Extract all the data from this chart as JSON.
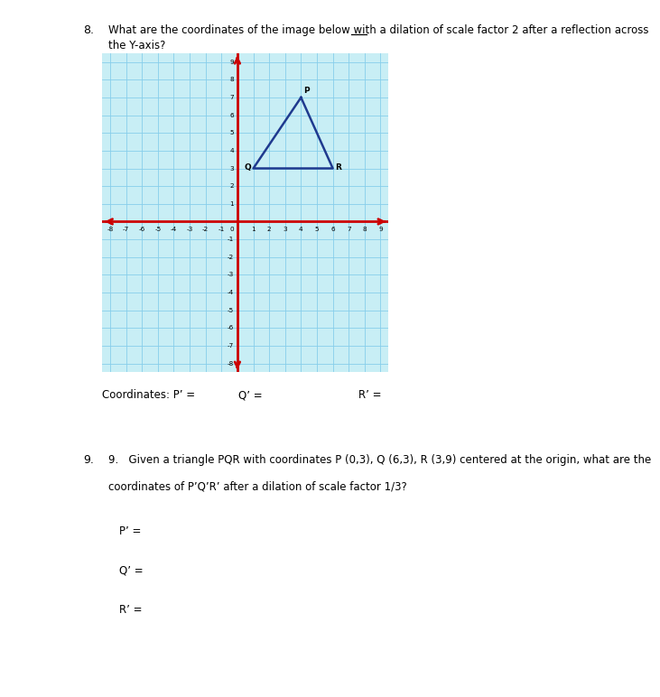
{
  "triangle_P": [
    4,
    7
  ],
  "triangle_Q": [
    1,
    3
  ],
  "triangle_R": [
    6,
    3
  ],
  "triangle_color": "#1F3A8F",
  "triangle_linewidth": 1.8,
  "grid_bg": "#C8EEF5",
  "grid_line_color": "#87CEEB",
  "axis_color": "#CC0000",
  "x_min": -8,
  "x_max": 9,
  "y_min": -8,
  "y_max": 9,
  "label_P": "P",
  "label_Q": "Q",
  "label_R": "R",
  "coords_label8": "Coordinates: P’ =",
  "q_label8": "Q’ =",
  "r_label8": "R’ =",
  "q8_line1_pre": "What are the coordinates of the image below with a dilation of scale factor 2 ",
  "q8_line1_under": "after",
  "q8_line1_post": " a reflection across",
  "q8_line2": "the Y-axis?",
  "q9_text1": "9.   Given a triangle PQR with coordinates P (0,3), Q (6,3), R (3,9) centered at the origin, what are the",
  "q9_text2": "coordinates of P’Q’R’ after a dilation of scale factor 1/3?",
  "q9_p": "P’ =",
  "q9_q": "Q’ =",
  "q9_r": "R’ =",
  "bg_color": "#FFFFFF",
  "text_color": "#000000"
}
